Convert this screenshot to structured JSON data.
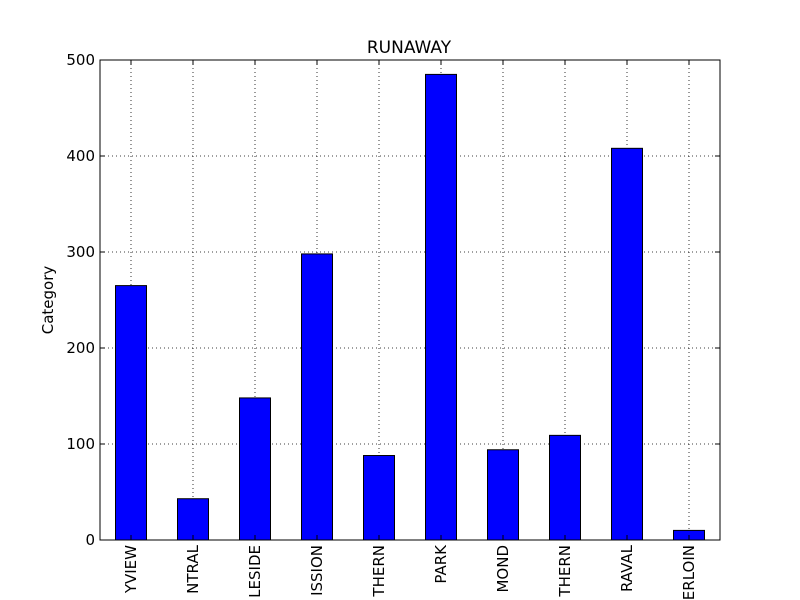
{
  "chart_data": {
    "type": "bar",
    "title": "RUNAWAY",
    "xlabel": "",
    "ylabel": "Category",
    "categories": [
      "BAYVIEW",
      "CENTRAL",
      "INGLESIDE",
      "MISSION",
      "NORTHERN",
      "PARK",
      "RICHMOND",
      "SOUTHERN",
      "TARAVAL",
      "TENDERLOIN"
    ],
    "visible_tick_labels": [
      "YVIEW",
      "NTRAL",
      "LESIDE",
      "ISSION",
      "THERN",
      "PARK",
      "MOND",
      "THERN",
      "RAVAL",
      "ERLOIN"
    ],
    "values": [
      265,
      43,
      148,
      298,
      88,
      485,
      94,
      109,
      408,
      10
    ],
    "ylim": [
      0,
      500
    ],
    "yticks": [
      0,
      100,
      200,
      300,
      400,
      500
    ],
    "grid": true,
    "bar_color": "#0000ff",
    "edge_color": "#000000"
  }
}
